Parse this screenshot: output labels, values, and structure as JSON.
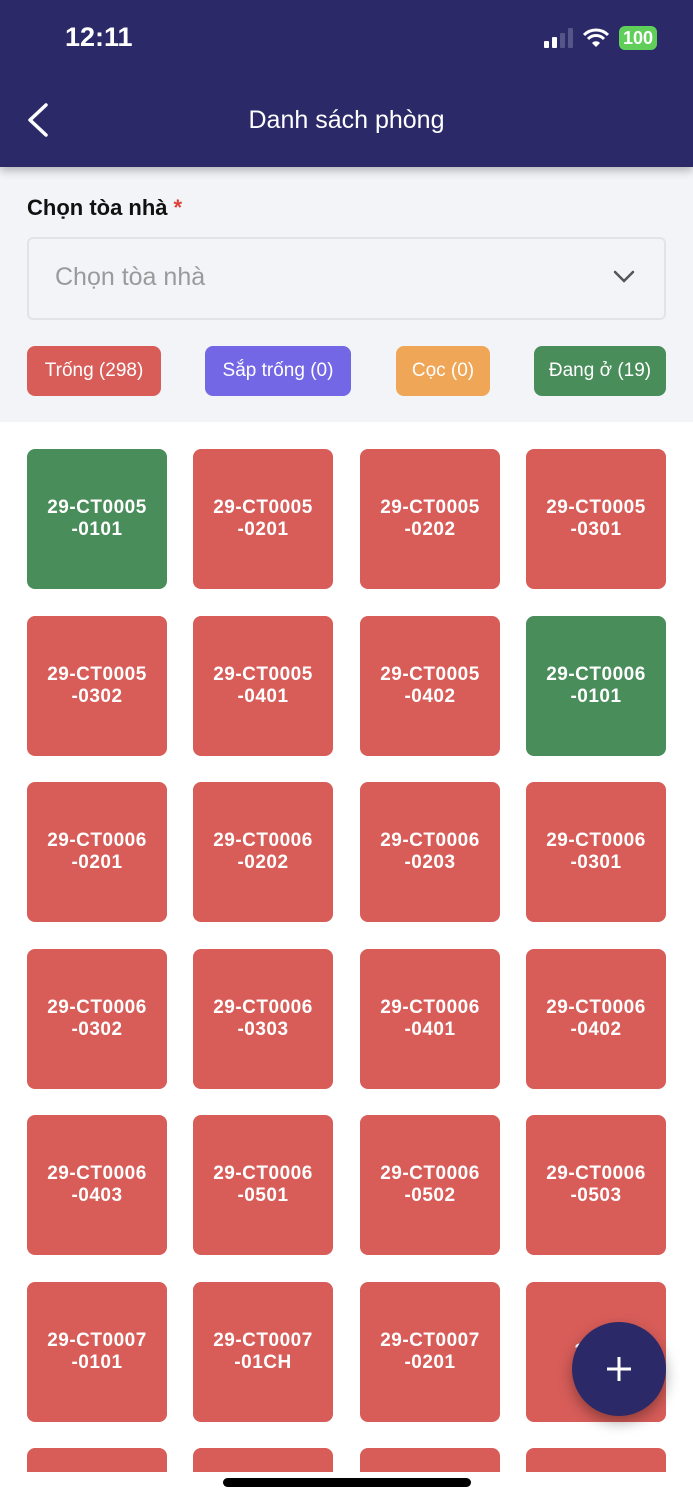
{
  "status_bar": {
    "time": "12:11",
    "battery": "100"
  },
  "header": {
    "title": "Danh sách phòng",
    "back_icon": "chevron-left-icon"
  },
  "filter": {
    "label": "Chọn tòa nhà",
    "required_mark": "*",
    "select_placeholder": "Chọn tòa nhà",
    "chips": [
      {
        "label": "Trống (298)",
        "color": "#d85d59"
      },
      {
        "label": "Sắp trống (0)",
        "color": "#7367e6"
      },
      {
        "label": "Cọc (0)",
        "color": "#f0a657"
      },
      {
        "label": "Đang ở (19)",
        "color": "#488d5a"
      }
    ]
  },
  "colors": {
    "vacant": "#d85d59",
    "occupied": "#488d5a",
    "header": "#2b2968"
  },
  "rooms": [
    {
      "code": "29-CT0005-0101",
      "status": "occupied"
    },
    {
      "code": "29-CT0005-0201",
      "status": "vacant"
    },
    {
      "code": "29-CT0005-0202",
      "status": "vacant"
    },
    {
      "code": "29-CT0005-0301",
      "status": "vacant"
    },
    {
      "code": "29-CT0005-0302",
      "status": "vacant"
    },
    {
      "code": "29-CT0005-0401",
      "status": "vacant"
    },
    {
      "code": "29-CT0005-0402",
      "status": "vacant"
    },
    {
      "code": "29-CT0006-0101",
      "status": "occupied"
    },
    {
      "code": "29-CT0006-0201",
      "status": "vacant"
    },
    {
      "code": "29-CT0006-0202",
      "status": "vacant"
    },
    {
      "code": "29-CT0006-0203",
      "status": "vacant"
    },
    {
      "code": "29-CT0006-0301",
      "status": "vacant"
    },
    {
      "code": "29-CT0006-0302",
      "status": "vacant"
    },
    {
      "code": "29-CT0006-0303",
      "status": "vacant"
    },
    {
      "code": "29-CT0006-0401",
      "status": "vacant"
    },
    {
      "code": "29-CT0006-0402",
      "status": "vacant"
    },
    {
      "code": "29-CT0006-0403",
      "status": "vacant"
    },
    {
      "code": "29-CT0006-0501",
      "status": "vacant"
    },
    {
      "code": "29-CT0006-0502",
      "status": "vacant"
    },
    {
      "code": "29-CT0006-0503",
      "status": "vacant"
    },
    {
      "code": "29-CT0007-0101",
      "status": "vacant"
    },
    {
      "code": "29-CT0007-01CH",
      "status": "vacant"
    },
    {
      "code": "29-CT0007-0201",
      "status": "vacant"
    },
    {
      "code": "29-C",
      "status": "vacant"
    },
    {
      "code": "",
      "status": "vacant"
    },
    {
      "code": "",
      "status": "vacant"
    },
    {
      "code": "",
      "status": "vacant"
    },
    {
      "code": "",
      "status": "vacant"
    }
  ],
  "fab": {
    "icon": "plus-icon"
  }
}
